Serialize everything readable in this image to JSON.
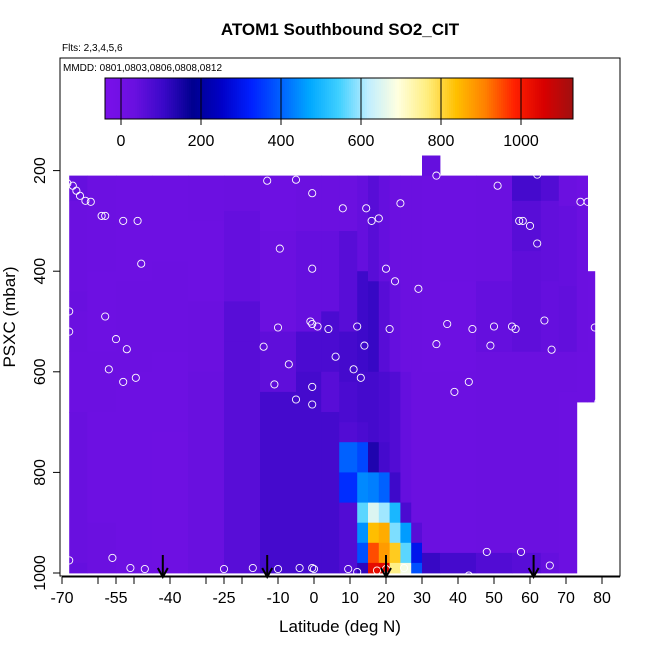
{
  "chart_data": {
    "type": "heatmap",
    "title": "ATOM1 Southbound SO2_CIT",
    "flights_note": "Flts: 2,3,4,5,6",
    "dates_note": "MMDD: 0801,0803,0806,0808,0812",
    "xlabel": "Latitude (deg N)",
    "ylabel": "PSXC (mbar)",
    "xlim": [
      -70,
      80
    ],
    "ylim": [
      1000,
      0
    ],
    "x_tick_labels": [
      -70,
      -55,
      -40,
      -25,
      -10,
      0,
      10,
      20,
      30,
      40,
      50,
      60,
      70,
      80
    ],
    "x_minor_ticks": [
      -70,
      -60,
      -50,
      -40,
      -30,
      -20,
      -10,
      0,
      10,
      20,
      30,
      40,
      50,
      60,
      70,
      80
    ],
    "y_ticks": [
      200,
      400,
      600,
      800,
      1000
    ],
    "colorbar": {
      "range": [
        -40,
        1130
      ],
      "ticks": [
        0,
        200,
        400,
        600,
        800,
        1000
      ],
      "palette": [
        "#7a10ea",
        "#6a10e0",
        "#3a08c8",
        "#00008f",
        "#0000c8",
        "#0020ff",
        "#0060ff",
        "#00a8ff",
        "#40d0ff",
        "#c0eeff",
        "#ffffe0",
        "#ffee80",
        "#ffc000",
        "#ff8000",
        "#ff2000",
        "#d80000",
        "#a01010"
      ]
    },
    "columns": [
      {
        "lat_from": -68,
        "lat_to": -63,
        "levels": [
          [
            210,
            260,
            40
          ],
          [
            260,
            440,
            30
          ],
          [
            440,
            480,
            35
          ],
          [
            480,
            560,
            30
          ],
          [
            560,
            680,
            25
          ],
          [
            680,
            980,
            35
          ],
          [
            980,
            1000,
            40
          ]
        ]
      },
      {
        "lat_from": -63,
        "lat_to": -55,
        "levels": [
          [
            210,
            400,
            25
          ],
          [
            400,
            560,
            20
          ],
          [
            560,
            680,
            25
          ],
          [
            680,
            900,
            20
          ],
          [
            900,
            1000,
            30
          ]
        ]
      },
      {
        "lat_from": -55,
        "lat_to": -45,
        "levels": [
          [
            210,
            420,
            20
          ],
          [
            420,
            600,
            25
          ],
          [
            600,
            1000,
            20
          ]
        ]
      },
      {
        "lat_from": -45,
        "lat_to": -35,
        "levels": [
          [
            210,
            380,
            20
          ],
          [
            380,
            560,
            25
          ],
          [
            560,
            720,
            20
          ],
          [
            720,
            1000,
            15
          ]
        ]
      },
      {
        "lat_from": -35,
        "lat_to": -25,
        "levels": [
          [
            210,
            300,
            25
          ],
          [
            300,
            460,
            20
          ],
          [
            460,
            600,
            30
          ],
          [
            600,
            1000,
            35
          ]
        ]
      },
      {
        "lat_from": -25,
        "lat_to": -15,
        "levels": [
          [
            210,
            280,
            30
          ],
          [
            280,
            460,
            40
          ],
          [
            460,
            540,
            60
          ],
          [
            540,
            1000,
            60
          ]
        ]
      },
      {
        "lat_from": -15,
        "lat_to": -5,
        "levels": [
          [
            210,
            320,
            20
          ],
          [
            320,
            520,
            30
          ],
          [
            520,
            640,
            50
          ],
          [
            640,
            1000,
            90
          ]
        ]
      },
      {
        "lat_from": -5,
        "lat_to": 2,
        "levels": [
          [
            210,
            320,
            30
          ],
          [
            320,
            520,
            40
          ],
          [
            520,
            600,
            80
          ],
          [
            600,
            1000,
            90
          ]
        ]
      },
      {
        "lat_from": 2,
        "lat_to": 7,
        "levels": [
          [
            210,
            320,
            30
          ],
          [
            320,
            480,
            40
          ],
          [
            480,
            600,
            80
          ],
          [
            600,
            680,
            60
          ],
          [
            680,
            1000,
            90
          ]
        ]
      },
      {
        "lat_from": 7,
        "lat_to": 12,
        "levels": [
          [
            210,
            320,
            30
          ],
          [
            320,
            520,
            60
          ],
          [
            520,
            620,
            90
          ],
          [
            620,
            700,
            80
          ],
          [
            700,
            740,
            70
          ],
          [
            740,
            800,
            400
          ],
          [
            800,
            860,
            340
          ],
          [
            860,
            940,
            70
          ],
          [
            940,
            1000,
            70
          ]
        ]
      },
      {
        "lat_from": 12,
        "lat_to": 15,
        "levels": [
          [
            210,
            400,
            40
          ],
          [
            400,
            600,
            100
          ],
          [
            600,
            700,
            90
          ],
          [
            700,
            740,
            80
          ],
          [
            740,
            800,
            370
          ],
          [
            800,
            860,
            440
          ],
          [
            860,
            900,
            560
          ],
          [
            900,
            940,
            450
          ],
          [
            940,
            980,
            380
          ],
          [
            980,
            1000,
            120
          ]
        ]
      },
      {
        "lat_from": 15,
        "lat_to": 18,
        "levels": [
          [
            210,
            420,
            60
          ],
          [
            420,
            600,
            110
          ],
          [
            600,
            740,
            90
          ],
          [
            740,
            800,
            140
          ],
          [
            800,
            860,
            430
          ],
          [
            860,
            900,
            650
          ],
          [
            900,
            940,
            840
          ],
          [
            940,
            980,
            950
          ],
          [
            980,
            1000,
            1030
          ]
        ]
      },
      {
        "lat_from": 18,
        "lat_to": 21,
        "levels": [
          [
            210,
            420,
            40
          ],
          [
            420,
            600,
            60
          ],
          [
            600,
            740,
            80
          ],
          [
            740,
            800,
            90
          ],
          [
            800,
            860,
            400
          ],
          [
            860,
            900,
            600
          ],
          [
            900,
            940,
            860
          ],
          [
            940,
            980,
            880
          ],
          [
            980,
            1000,
            1040
          ]
        ]
      },
      {
        "lat_from": 21,
        "lat_to": 24,
        "levels": [
          [
            210,
            420,
            30
          ],
          [
            420,
            600,
            40
          ],
          [
            600,
            800,
            70
          ],
          [
            800,
            860,
            100
          ],
          [
            860,
            900,
            500
          ],
          [
            900,
            940,
            580
          ],
          [
            940,
            980,
            820
          ],
          [
            980,
            1000,
            760
          ]
        ]
      },
      {
        "lat_from": 24,
        "lat_to": 27,
        "levels": [
          [
            210,
            600,
            30
          ],
          [
            600,
            860,
            40
          ],
          [
            860,
            900,
            80
          ],
          [
            900,
            940,
            460
          ],
          [
            940,
            980,
            560
          ],
          [
            980,
            1000,
            680
          ]
        ]
      },
      {
        "lat_from": 27,
        "lat_to": 30,
        "levels": [
          [
            210,
            600,
            30
          ],
          [
            600,
            900,
            30
          ],
          [
            900,
            940,
            60
          ],
          [
            940,
            980,
            300
          ],
          [
            980,
            1000,
            380
          ]
        ]
      },
      {
        "lat_from": 30,
        "lat_to": 35,
        "levels": [
          [
            170,
            210,
            40
          ],
          [
            210,
            600,
            25
          ],
          [
            600,
            960,
            30
          ],
          [
            960,
            1000,
            110
          ]
        ]
      },
      {
        "lat_from": 35,
        "lat_to": 45,
        "levels": [
          [
            210,
            420,
            25
          ],
          [
            420,
            600,
            20
          ],
          [
            600,
            960,
            25
          ],
          [
            960,
            1000,
            90
          ]
        ]
      },
      {
        "lat_from": 45,
        "lat_to": 55,
        "levels": [
          [
            210,
            420,
            30
          ],
          [
            420,
            560,
            40
          ],
          [
            560,
            960,
            30
          ],
          [
            960,
            1000,
            70
          ]
        ]
      },
      {
        "lat_from": 55,
        "lat_to": 63,
        "levels": [
          [
            210,
            260,
            90
          ],
          [
            260,
            360,
            60
          ],
          [
            360,
            560,
            50
          ],
          [
            560,
            960,
            30
          ],
          [
            960,
            1000,
            60
          ]
        ]
      },
      {
        "lat_from": 63,
        "lat_to": 68,
        "levels": [
          [
            210,
            260,
            70
          ],
          [
            260,
            420,
            45
          ],
          [
            420,
            560,
            40
          ],
          [
            560,
            960,
            30
          ],
          [
            960,
            1000,
            40
          ]
        ]
      },
      {
        "lat_from": 68,
        "lat_to": 73,
        "levels": [
          [
            210,
            270,
            30
          ],
          [
            270,
            430,
            40
          ],
          [
            430,
            560,
            45
          ],
          [
            560,
            640,
            30
          ],
          [
            640,
            1000,
            25
          ]
        ]
      },
      {
        "lat_from": 73,
        "lat_to": 76,
        "levels": [
          [
            210,
            270,
            15
          ],
          [
            270,
            560,
            30
          ],
          [
            560,
            660,
            25
          ]
        ]
      },
      {
        "lat_from": 76,
        "lat_to": 78,
        "levels": [
          [
            400,
            660,
            25
          ]
        ]
      }
    ],
    "points": [
      {
        "lat": -68.5,
        "p": 225
      },
      {
        "lat": -67,
        "p": 230
      },
      {
        "lat": -66,
        "p": 240
      },
      {
        "lat": -65,
        "p": 250
      },
      {
        "lat": -63.5,
        "p": 260
      },
      {
        "lat": -62,
        "p": 262
      },
      {
        "lat": -59,
        "p": 290
      },
      {
        "lat": -58,
        "p": 290
      },
      {
        "lat": -53,
        "p": 300
      },
      {
        "lat": -49,
        "p": 300
      },
      {
        "lat": -48,
        "p": 385
      },
      {
        "lat": -68,
        "p": 480
      },
      {
        "lat": -68,
        "p": 520
      },
      {
        "lat": -58,
        "p": 490
      },
      {
        "lat": -55,
        "p": 535
      },
      {
        "lat": -52,
        "p": 555
      },
      {
        "lat": -57,
        "p": 595
      },
      {
        "lat": -53,
        "p": 620
      },
      {
        "lat": -49.5,
        "p": 612
      },
      {
        "lat": -13,
        "p": 220
      },
      {
        "lat": -5,
        "p": 218
      },
      {
        "lat": -0.5,
        "p": 245
      },
      {
        "lat": -9.5,
        "p": 355
      },
      {
        "lat": -10,
        "p": 512
      },
      {
        "lat": -14,
        "p": 550
      },
      {
        "lat": -0.5,
        "p": 395
      },
      {
        "lat": -1,
        "p": 500
      },
      {
        "lat": -0.5,
        "p": 505
      },
      {
        "lat": 1,
        "p": 510
      },
      {
        "lat": -7,
        "p": 585
      },
      {
        "lat": -11,
        "p": 625
      },
      {
        "lat": -5,
        "p": 655
      },
      {
        "lat": -0.5,
        "p": 630
      },
      {
        "lat": -0.5,
        "p": 665
      },
      {
        "lat": 4,
        "p": 515
      },
      {
        "lat": 6,
        "p": 570
      },
      {
        "lat": 8,
        "p": 275
      },
      {
        "lat": 12,
        "p": 510
      },
      {
        "lat": 11,
        "p": 595
      },
      {
        "lat": 13,
        "p": 612
      },
      {
        "lat": 14,
        "p": 548
      },
      {
        "lat": 14.5,
        "p": 275
      },
      {
        "lat": 16,
        "p": 300
      },
      {
        "lat": 18,
        "p": 295
      },
      {
        "lat": 20,
        "p": 395
      },
      {
        "lat": 21,
        "p": 515
      },
      {
        "lat": 22.5,
        "p": 420
      },
      {
        "lat": 24,
        "p": 265
      },
      {
        "lat": 29,
        "p": 435
      },
      {
        "lat": 28,
        "p": 180
      },
      {
        "lat": 34,
        "p": 210
      },
      {
        "lat": 34,
        "p": 545
      },
      {
        "lat": 37,
        "p": 505
      },
      {
        "lat": 39,
        "p": 640
      },
      {
        "lat": 43,
        "p": 620
      },
      {
        "lat": 44,
        "p": 515
      },
      {
        "lat": 49,
        "p": 548
      },
      {
        "lat": 50,
        "p": 510
      },
      {
        "lat": 51,
        "p": 230
      },
      {
        "lat": 55,
        "p": 510
      },
      {
        "lat": 56,
        "p": 515
      },
      {
        "lat": 57,
        "p": 300
      },
      {
        "lat": 58,
        "p": 300
      },
      {
        "lat": 60,
        "p": 310
      },
      {
        "lat": 62,
        "p": 345
      },
      {
        "lat": 64,
        "p": 498
      },
      {
        "lat": 66,
        "p": 556
      },
      {
        "lat": 62,
        "p": 208
      },
      {
        "lat": 74,
        "p": 262
      },
      {
        "lat": 76,
        "p": 262
      },
      {
        "lat": 78,
        "p": 512
      },
      {
        "lat": 79,
        "p": 660
      },
      {
        "lat": 79.5,
        "p": 665
      },
      {
        "lat": 79,
        "p": 970
      },
      {
        "lat": -68,
        "p": 975
      },
      {
        "lat": -56,
        "p": 970
      },
      {
        "lat": -51,
        "p": 990
      },
      {
        "lat": -47,
        "p": 992
      },
      {
        "lat": -25,
        "p": 992
      },
      {
        "lat": -17,
        "p": 990
      },
      {
        "lat": -10,
        "p": 992
      },
      {
        "lat": -4,
        "p": 990
      },
      {
        "lat": -0.5,
        "p": 990
      },
      {
        "lat": 0,
        "p": 992
      },
      {
        "lat": 9.5,
        "p": 992
      },
      {
        "lat": 12,
        "p": 998
      },
      {
        "lat": 17.5,
        "p": 995
      },
      {
        "lat": 20,
        "p": 992
      },
      {
        "lat": 25,
        "p": 990
      },
      {
        "lat": 38,
        "p": 1010
      },
      {
        "lat": 43,
        "p": 1005
      },
      {
        "lat": 48,
        "p": 958
      },
      {
        "lat": 57.5,
        "p": 958
      },
      {
        "lat": 65.5,
        "p": 985
      }
    ],
    "arrows_at_latitude": [
      -42,
      -13,
      20,
      61
    ]
  }
}
